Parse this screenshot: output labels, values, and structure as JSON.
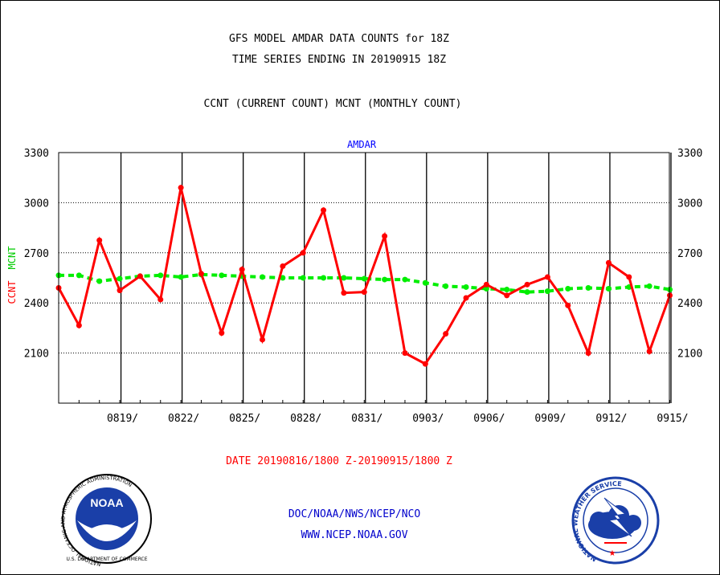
{
  "header": {
    "title_line1": "GFS MODEL AMDAR DATA COUNTS for 18Z",
    "title_line2": "TIME SERIES ENDING IN 20190915 18Z",
    "subtitle": "CCNT (CURRENT COUNT) MCNT (MONTHLY COUNT)"
  },
  "footer": {
    "date_range": "DATE 20190816/1800 Z-20190915/1800 Z",
    "org_line": "DOC/NOAA/NWS/NCEP/NCO",
    "url_line": "WWW.NCEP.NOAA.GOV"
  },
  "logos": {
    "noaa_text": "NOAA",
    "noaa_ring": "NATIONAL OCEANIC AND ATMOSPHERIC ADMINISTRATION",
    "noaa_ring_bottom": "U.S. DEPARTMENT OF COMMERCE",
    "nws_ring": "NATIONAL WEATHER SERVICE"
  },
  "colors": {
    "ccnt": "#ff0000",
    "mcnt": "#00ee00",
    "title": "#000000",
    "panel_label": "#0000ff",
    "footer_links": "#0000cc"
  },
  "chart_data": {
    "type": "line",
    "panel_label": "AMDAR",
    "ylabel_left_ccnt": "CCNT",
    "ylabel_left_mcnt": "MCNT",
    "ylim": [
      1800,
      3300
    ],
    "yticks": [
      2100,
      2400,
      2700,
      3000,
      3300
    ],
    "ytick_labels": [
      "2100",
      "2400",
      "2700",
      "3000",
      "3300"
    ],
    "x_dates": [
      "0816",
      "0817",
      "0818",
      "0819",
      "0820",
      "0821",
      "0822",
      "0823",
      "0824",
      "0825",
      "0826",
      "0827",
      "0828",
      "0829",
      "0830",
      "0831",
      "0901",
      "0902",
      "0903",
      "0904",
      "0905",
      "0906",
      "0907",
      "0908",
      "0909",
      "0910",
      "0911",
      "0912",
      "0913",
      "0914",
      "0915"
    ],
    "x_tick_labels": [
      "0819/",
      "0822/",
      "0825/",
      "0828/",
      "0831/",
      "0903/",
      "0906/",
      "0909/",
      "0912/",
      "0915/"
    ],
    "x_tick_dates": [
      "0819",
      "0822",
      "0825",
      "0828",
      "0831",
      "0903",
      "0906",
      "0909",
      "0912",
      "0915"
    ],
    "grid": true,
    "series": [
      {
        "name": "CCNT",
        "values": [
          2490,
          2265,
          2775,
          2475,
          2560,
          2420,
          3090,
          2575,
          2220,
          2600,
          2180,
          2620,
          2700,
          2955,
          2460,
          2465,
          2800,
          2100,
          2035,
          2215,
          2430,
          2510,
          2445,
          2510,
          2555,
          2385,
          2100,
          2640,
          2555,
          2110,
          2445
        ]
      },
      {
        "name": "MCNT",
        "values": [
          2565,
          2565,
          2530,
          2545,
          2560,
          2565,
          2555,
          2570,
          2565,
          2560,
          2555,
          2550,
          2550,
          2550,
          2550,
          2545,
          2540,
          2540,
          2520,
          2500,
          2495,
          2485,
          2480,
          2465,
          2470,
          2485,
          2490,
          2485,
          2495,
          2500,
          2480
        ]
      }
    ]
  }
}
